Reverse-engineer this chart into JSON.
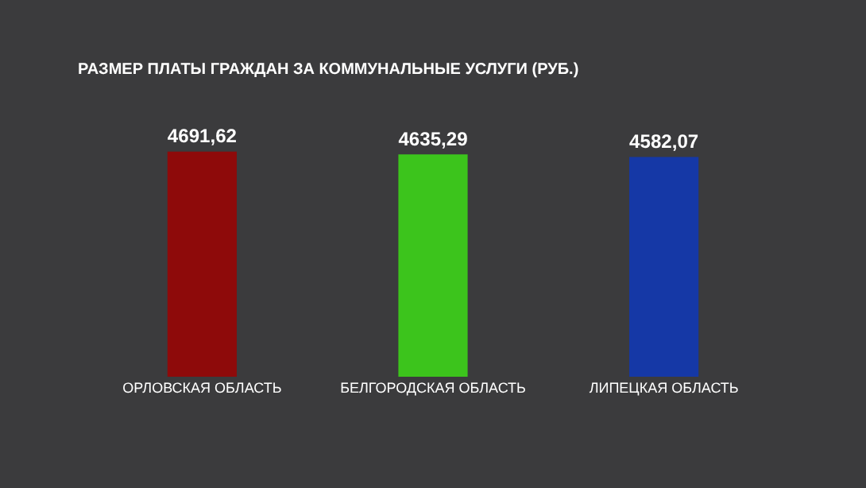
{
  "chart_data": {
    "type": "bar",
    "title": "РАЗМЕР ПЛАТЫ ГРАЖДАН ЗА КОММУНАЛЬНЫЕ УСЛУГИ (РУБ.)",
    "categories": [
      "ОРЛОВСКАЯ ОБЛАСТЬ",
      "БЕЛГОРОДСКАЯ ОБЛАСТЬ",
      "ЛИПЕЦКАЯ ОБЛАСТЬ"
    ],
    "values": [
      4691.62,
      4635.29,
      4582.07
    ],
    "value_labels": [
      "4691,62",
      "4635,29",
      "4582,07"
    ],
    "colors": [
      "#8e0a0a",
      "#3cc41c",
      "#1538a6"
    ],
    "grid": false,
    "legend": false
  }
}
